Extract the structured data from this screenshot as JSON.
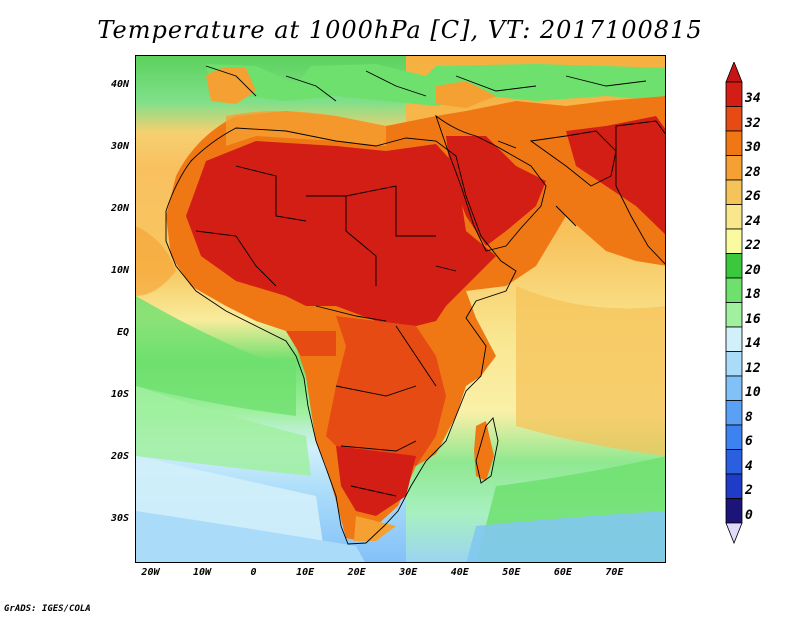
{
  "title": "Temperature at 1000hPa [C], VT: 2017100815",
  "footer": "GrADS: IGES/COLA",
  "map": {
    "lon_range": [
      -23,
      80
    ],
    "lat_range": [
      -37,
      45
    ],
    "y_axis_labels": [
      {
        "text": "40N",
        "lat": 40
      },
      {
        "text": "30N",
        "lat": 30
      },
      {
        "text": "20N",
        "lat": 20
      },
      {
        "text": "10N",
        "lat": 10
      },
      {
        "text": "EQ",
        "lat": 0
      },
      {
        "text": "10S",
        "lat": -10
      },
      {
        "text": "20S",
        "lat": -20
      },
      {
        "text": "30S",
        "lat": -30
      }
    ],
    "x_axis_labels": [
      {
        "text": "20W",
        "lon": -20
      },
      {
        "text": "10W",
        "lon": -10
      },
      {
        "text": "0",
        "lon": 0
      },
      {
        "text": "10E",
        "lon": 10
      },
      {
        "text": "20E",
        "lon": 20
      },
      {
        "text": "30E",
        "lon": 30
      },
      {
        "text": "40E",
        "lon": 40
      },
      {
        "text": "50E",
        "lon": 50
      },
      {
        "text": "60E",
        "lon": 60
      },
      {
        "text": "70E",
        "lon": 70
      }
    ]
  },
  "colorbar": {
    "levels": [
      "0",
      "2",
      "4",
      "6",
      "8",
      "10",
      "12",
      "14",
      "16",
      "18",
      "20",
      "22",
      "24",
      "26",
      "28",
      "30",
      "32",
      "34"
    ],
    "colors": [
      "#1c1478",
      "#1e3cc8",
      "#2a5fe0",
      "#3c82f0",
      "#5aa0f5",
      "#82c0f8",
      "#aadcfa",
      "#d2f0fa",
      "#a0f0a0",
      "#6ee06e",
      "#3cc83c",
      "#fafaa0",
      "#fae68c",
      "#f5c35a",
      "#f5a032",
      "#f07814",
      "#e64b14",
      "#d21e14"
    ],
    "under_color": "#e0dcf8",
    "over_color": "#c81414"
  },
  "colors": {
    "ocean_base": "#8cd8f0",
    "coast": "#000000"
  }
}
